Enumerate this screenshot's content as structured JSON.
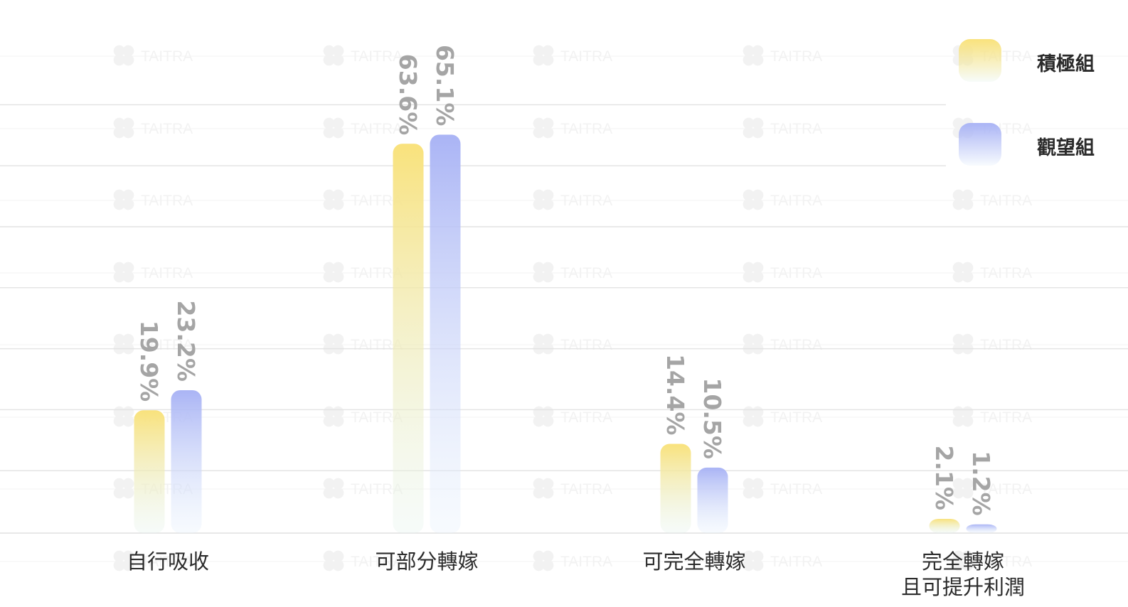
{
  "chart_data": {
    "type": "bar",
    "categories": [
      "自行吸收",
      "可部分轉嫁",
      "可完全轉嫁",
      "完全轉嫁\n且可提升利潤"
    ],
    "series": [
      {
        "name": "積極組",
        "values": [
          19.9,
          63.6,
          14.4,
          2.1
        ],
        "color": "#f9e27c",
        "fade": "#e6f4ee"
      },
      {
        "name": "觀望組",
        "values": [
          23.2,
          65.1,
          10.5,
          1.2
        ],
        "color": "#aab4f5",
        "fade": "#e8f2fc"
      }
    ],
    "value_suffix": "%",
    "ylim": [
      0,
      70
    ],
    "grid": true,
    "legend_position": "top-right",
    "watermark": "TAITRA"
  },
  "legend": {
    "items": [
      {
        "label": "積極組"
      },
      {
        "label": "觀望組"
      }
    ]
  }
}
